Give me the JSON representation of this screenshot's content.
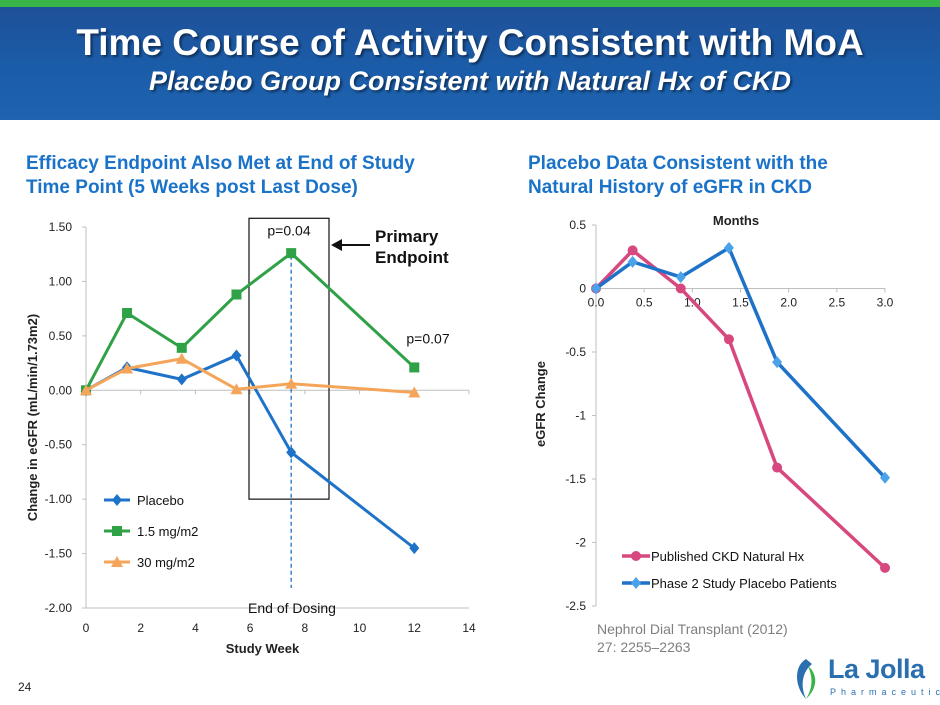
{
  "header": {
    "title": "Time Course of Activity Consistent with MoA",
    "subtitle": "Placebo Group Consistent with Natural Hx of CKD"
  },
  "left": {
    "heading": "Efficacy Endpoint Also Met at End of Study\nTime Point (5 Weeks post Last Dose)"
  },
  "right": {
    "heading": "Placebo Data Consistent with the\nNatural History of eGFR in CKD"
  },
  "page_number": "24",
  "citation": "Nephrol Dial Transplant (2012)\n27: 2255–2263",
  "logo": {
    "name": "La Jolla",
    "sub": "Pharmaceutical"
  },
  "colors": {
    "placebo": "#1e73c9",
    "mg15": "#2fa147",
    "mg30": "#f5a55a",
    "published": "#d6487e",
    "phase2": "#1e73c9",
    "heading": "#1a73c8"
  },
  "chart_data": [
    {
      "type": "line",
      "xlabel": "Study Week",
      "ylabel": "Change in eGFR (mL/min/1.73m2)",
      "xlim": [
        0,
        14
      ],
      "ylim": [
        -2.0,
        1.5
      ],
      "xticks": [
        "0",
        "2",
        "4",
        "6",
        "8",
        "10",
        "12",
        "14"
      ],
      "yticks": [
        "1.50",
        "1.00",
        "0.50",
        "0.00",
        "-0.50",
        "-1.00",
        "-1.50",
        "-2.00"
      ],
      "series": [
        {
          "name": "Placebo",
          "marker": "diamond",
          "x": [
            0,
            1.5,
            3.5,
            5.5,
            7.5,
            12
          ],
          "values": [
            0.0,
            0.21,
            0.1,
            0.32,
            -0.57,
            -1.45
          ]
        },
        {
          "name": "1.5 mg/m2",
          "marker": "square",
          "x": [
            0,
            1.5,
            3.5,
            5.5,
            7.5,
            12
          ],
          "values": [
            0.0,
            0.71,
            0.39,
            0.88,
            1.26,
            0.21
          ]
        },
        {
          "name": "30 mg/m2",
          "marker": "triangle",
          "x": [
            0,
            1.5,
            3.5,
            5.5,
            7.5,
            12
          ],
          "values": [
            0.0,
            0.2,
            0.29,
            0.01,
            0.06,
            -0.02
          ]
        }
      ],
      "annotations": {
        "p1": "p=0.04",
        "p2": "p=0.07",
        "primary": "Primary\nEndpoint",
        "dosing": "End of Dosing"
      }
    },
    {
      "type": "line",
      "title": "Months",
      "ylabel": "eGFR Change",
      "xlim": [
        0,
        3
      ],
      "ylim": [
        -2.5,
        0.5
      ],
      "xticks": [
        "0.0",
        "0.5",
        "1.0",
        "1.5",
        "2.0",
        "2.5",
        "3.0"
      ],
      "yticks": [
        "0.5",
        "0",
        "-0.5",
        "-1",
        "-1.5",
        "-2",
        "-2.5"
      ],
      "series": [
        {
          "name": "Published CKD Natural Hx",
          "marker": "circle",
          "x": [
            0,
            0.38,
            0.88,
            1.38,
            1.88,
            3.0
          ],
          "values": [
            0.0,
            0.3,
            0.0,
            -0.4,
            -1.41,
            -2.2
          ]
        },
        {
          "name": "Phase 2 Study Placebo Patients",
          "marker": "diamond",
          "x": [
            0,
            0.38,
            0.88,
            1.38,
            1.88,
            3.0
          ],
          "values": [
            0.0,
            0.21,
            0.09,
            0.32,
            -0.58,
            -1.49
          ]
        }
      ]
    }
  ]
}
